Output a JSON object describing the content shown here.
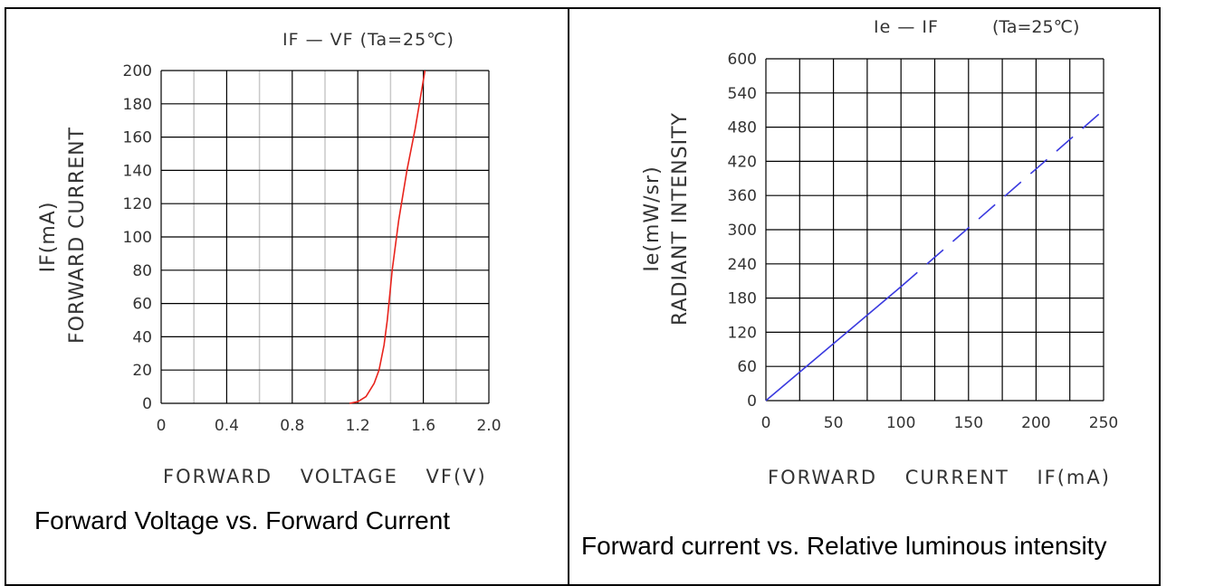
{
  "chart_data": [
    {
      "type": "line",
      "title": "IF — VF (Ta=25℃)",
      "xlabel": "FORWARD VOLTAGE VF(V)",
      "ylabel_line1": "IF(mA)",
      "ylabel_line2": "FORWARD CURRENT",
      "xlim": [
        0,
        2.0
      ],
      "ylim": [
        0,
        200
      ],
      "x_ticks": [
        "0",
        "0.4",
        "0.8",
        "1.2",
        "1.6",
        "2.0"
      ],
      "y_ticks": [
        "0",
        "20",
        "40",
        "60",
        "80",
        "100",
        "120",
        "140",
        "160",
        "180",
        "200"
      ],
      "grid": true,
      "color": "#e8231c",
      "series": [
        {
          "x": [
            1.15,
            1.2,
            1.25,
            1.3,
            1.33,
            1.36,
            1.38,
            1.41,
            1.45,
            1.5,
            1.55,
            1.61
          ],
          "y": [
            0,
            1,
            4,
            12,
            20,
            35,
            50,
            80,
            110,
            140,
            165,
            200
          ]
        }
      ],
      "caption": "Forward Voltage vs. Forward Current"
    },
    {
      "type": "line",
      "title_left": "Ie — IF",
      "title_right": "(Ta=25℃)",
      "xlabel": "FORWARD CURRENT IF(mA)",
      "ylabel_line1": "Ie(mW/sr)",
      "ylabel_line2": "RADIANT INTENSITY",
      "xlim": [
        0,
        250
      ],
      "ylim": [
        0,
        600
      ],
      "x_ticks": [
        "0",
        "50",
        "100",
        "150",
        "200",
        "250"
      ],
      "y_ticks": [
        "0",
        "60",
        "120",
        "180",
        "240",
        "300",
        "360",
        "420",
        "480",
        "540",
        "600"
      ],
      "grid": true,
      "color": "#3a3adf",
      "series": [
        {
          "style": "solid",
          "x": [
            0,
            100
          ],
          "y": [
            0,
            200
          ]
        },
        {
          "style": "dashed",
          "x": [
            100,
            250
          ],
          "y": [
            200,
            510
          ]
        }
      ],
      "caption": "Forward current vs. Relative luminous intensity"
    }
  ]
}
